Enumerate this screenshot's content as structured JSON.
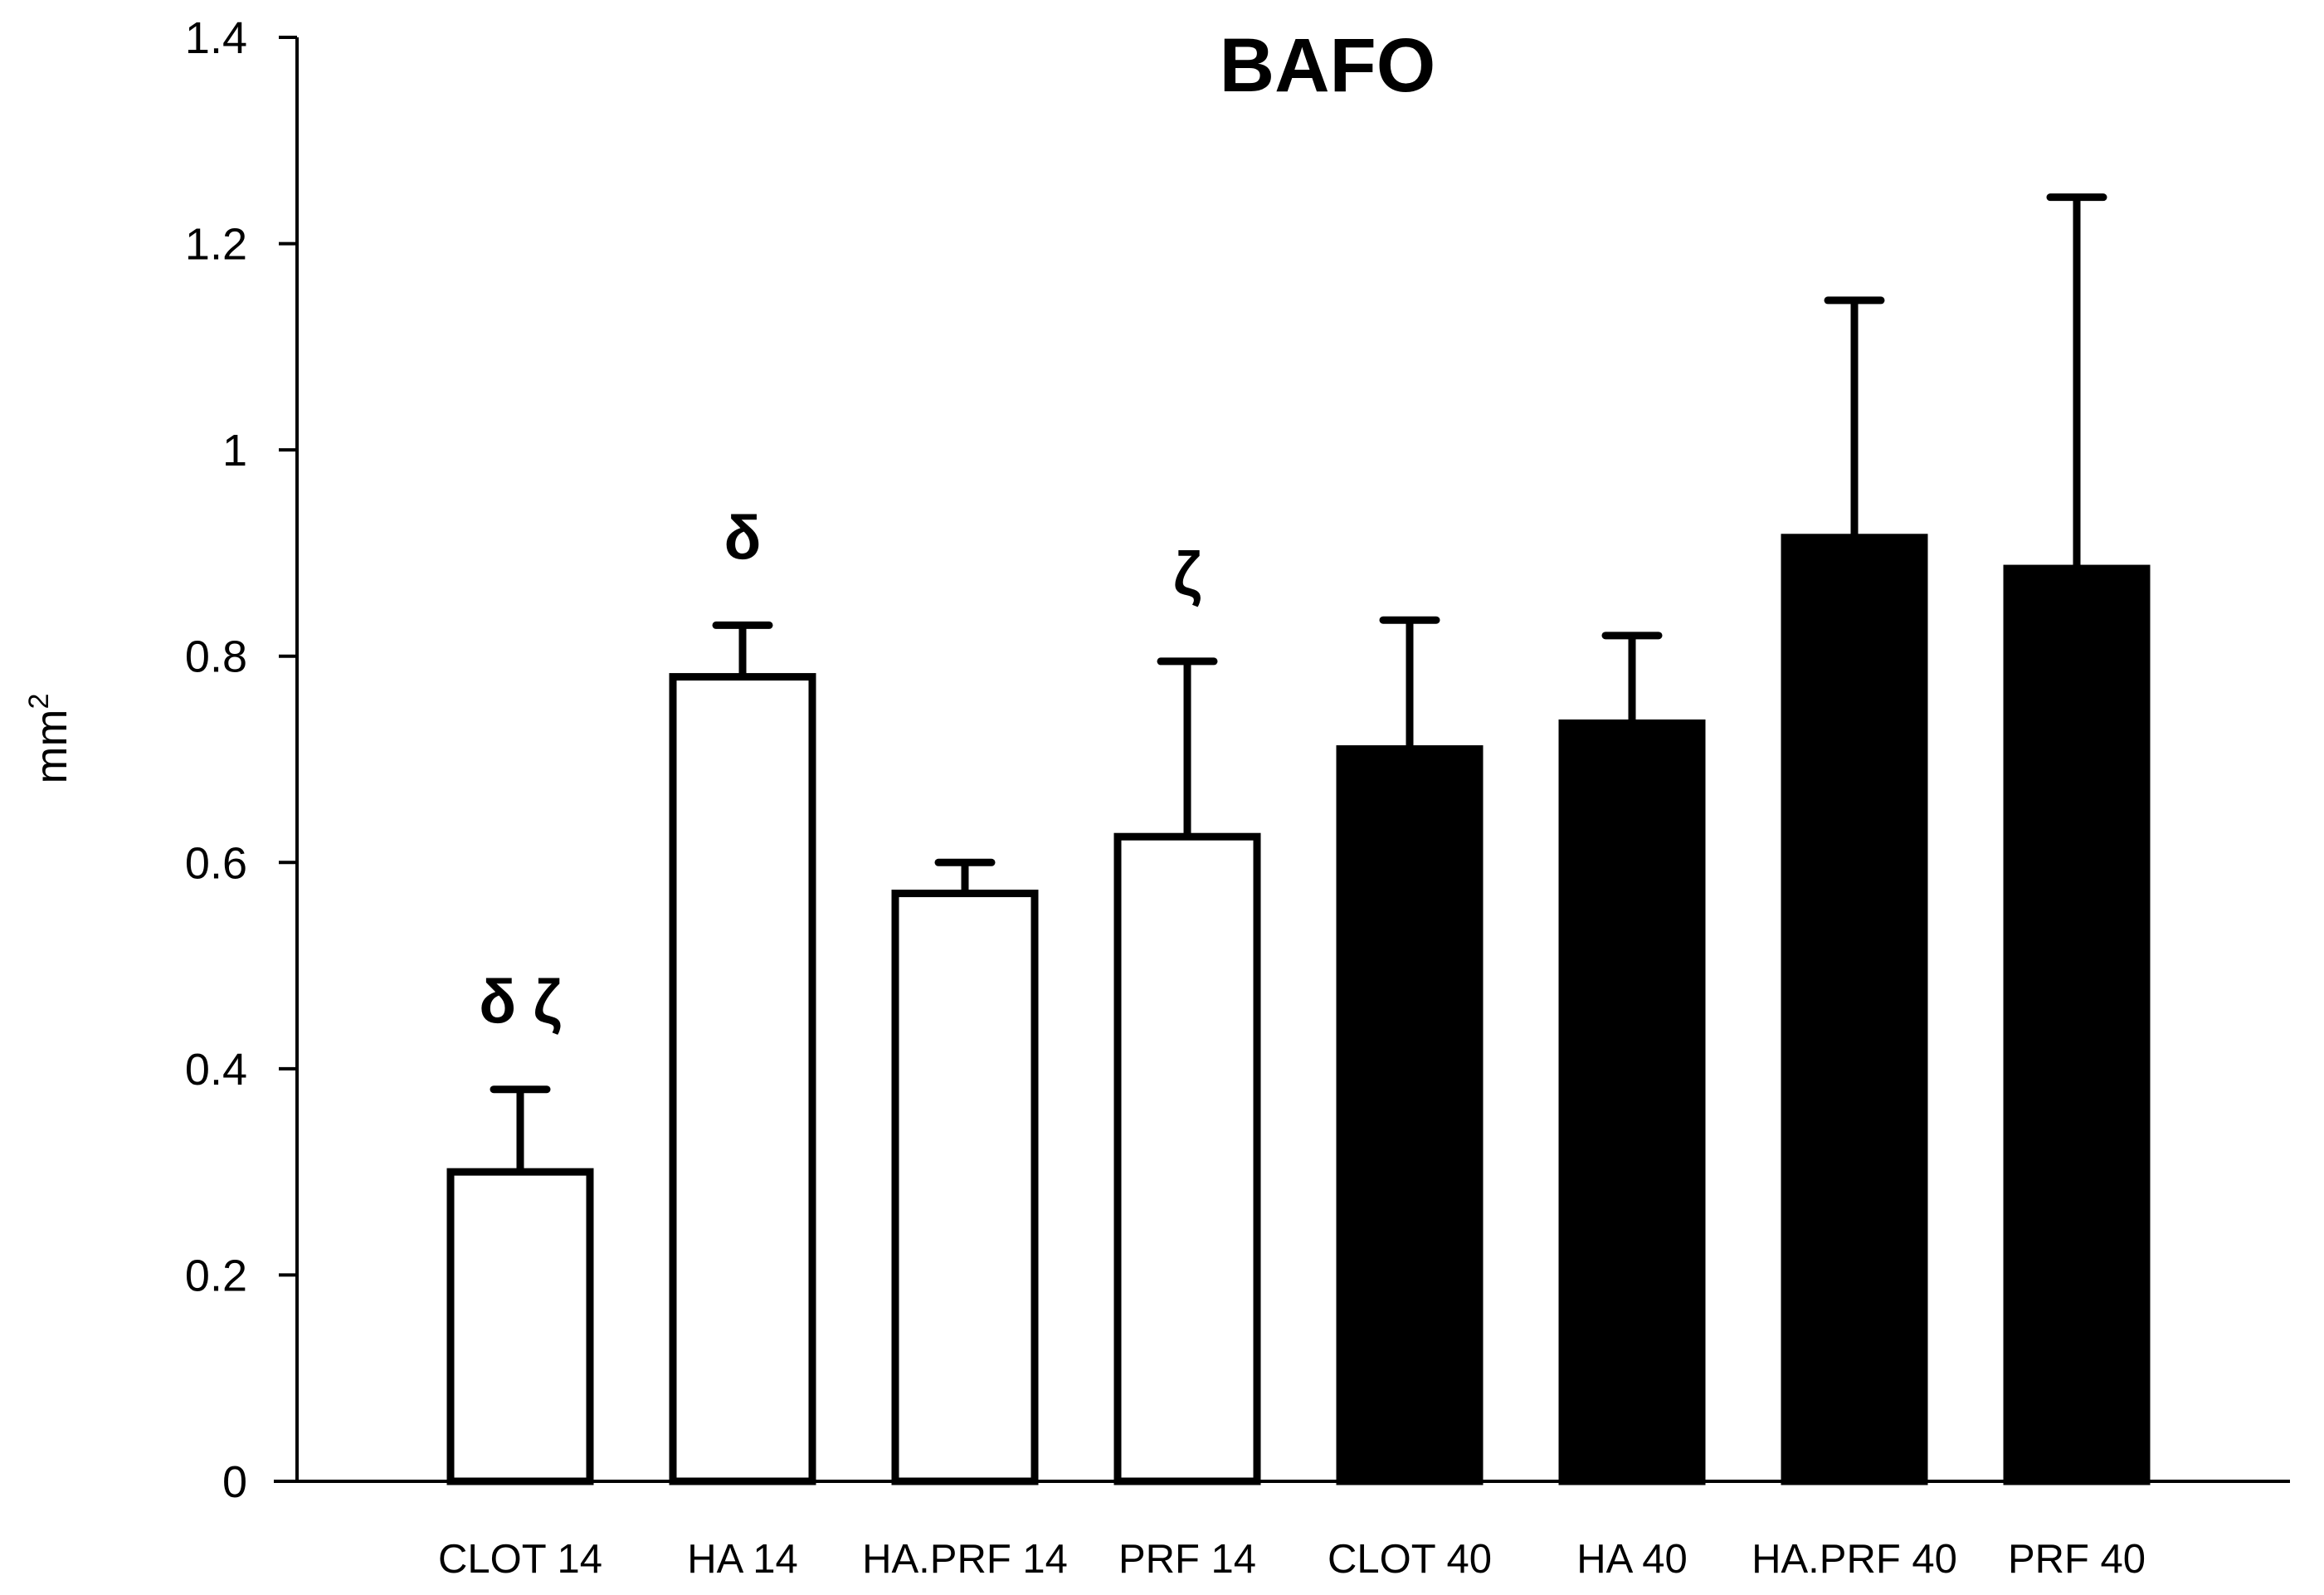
{
  "chart_data": {
    "type": "bar",
    "title": "BAFO",
    "xlabel": "",
    "ylabel": "mm",
    "ylabel_superscript": "2",
    "ylim": [
      0,
      1.4
    ],
    "yticks": [
      {
        "value": 0,
        "label": "0"
      },
      {
        "value": 0.2,
        "label": "0.2"
      },
      {
        "value": 0.4,
        "label": "0.4"
      },
      {
        "value": 0.6,
        "label": "0.6"
      },
      {
        "value": 0.8,
        "label": "0.8"
      },
      {
        "value": 1.0,
        "label": "1"
      },
      {
        "value": 1.2,
        "label": "1.2"
      },
      {
        "value": 1.4,
        "label": "1.4"
      }
    ],
    "grid": false,
    "categories": [
      "CLOT 14",
      "HA 14",
      "HA.PRF 14",
      "PRF 14",
      "CLOT 40",
      "HA 40",
      "HA.PRF 40",
      "PRF 40"
    ],
    "values": [
      0.3,
      0.78,
      0.57,
      0.625,
      0.71,
      0.735,
      0.915,
      0.885
    ],
    "errors": [
      0.08,
      0.05,
      0.03,
      0.17,
      0.125,
      0.085,
      0.23,
      0.36
    ],
    "fill_styles": [
      "hollow",
      "hollow",
      "hollow",
      "hollow",
      "solid",
      "solid",
      "solid",
      "solid"
    ],
    "annotations": [
      {
        "category": "CLOT 14",
        "text": "δ ζ"
      },
      {
        "category": "HA 14",
        "text": "δ"
      },
      {
        "category": "PRF 14",
        "text": "ζ"
      }
    ],
    "colors": {
      "bar_stroke": "#000000",
      "hollow_fill": "#ffffff",
      "solid_fill": "#000000",
      "axis": "#000000"
    }
  }
}
